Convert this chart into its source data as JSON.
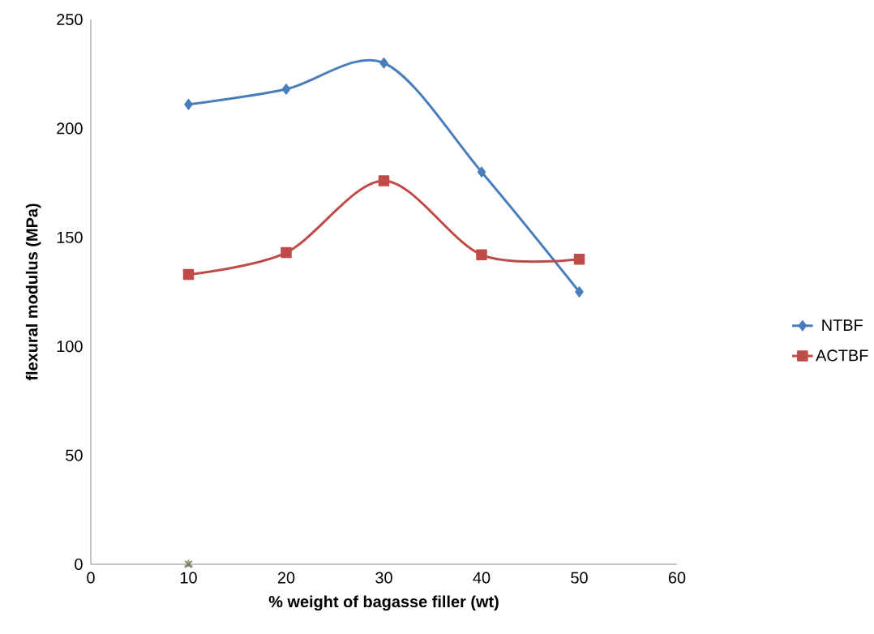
{
  "chart_data": {
    "type": "line",
    "xlabel": "% weight of bagasse filler  (wt)",
    "ylabel": "flexural modulus (MPa)",
    "x": [
      10,
      20,
      30,
      40,
      50
    ],
    "xlim": [
      0,
      60
    ],
    "xticks": [
      0,
      10,
      20,
      30,
      40,
      50,
      60
    ],
    "ylim": [
      0,
      250
    ],
    "yticks": [
      0,
      50,
      100,
      150,
      200,
      250
    ],
    "grid": false,
    "legend": "right",
    "line_style": "solid",
    "series": [
      {
        "name": "NTBF",
        "color": "#4a7ebb",
        "marker": "diamond",
        "values": [
          211,
          218,
          230,
          180,
          125
        ]
      },
      {
        "name": "ACTBF",
        "color": "#be4b48",
        "marker": "square",
        "values": [
          133,
          143,
          176,
          142,
          140
        ]
      },
      {
        "type": "scatter",
        "color": "#9bbb59",
        "marker": "triangle",
        "x": [
          10
        ],
        "values": [
          0
        ]
      },
      {
        "type": "scatter",
        "color": "#8064a2",
        "marker": "cross",
        "x": [
          10
        ],
        "values": [
          0
        ]
      }
    ]
  }
}
